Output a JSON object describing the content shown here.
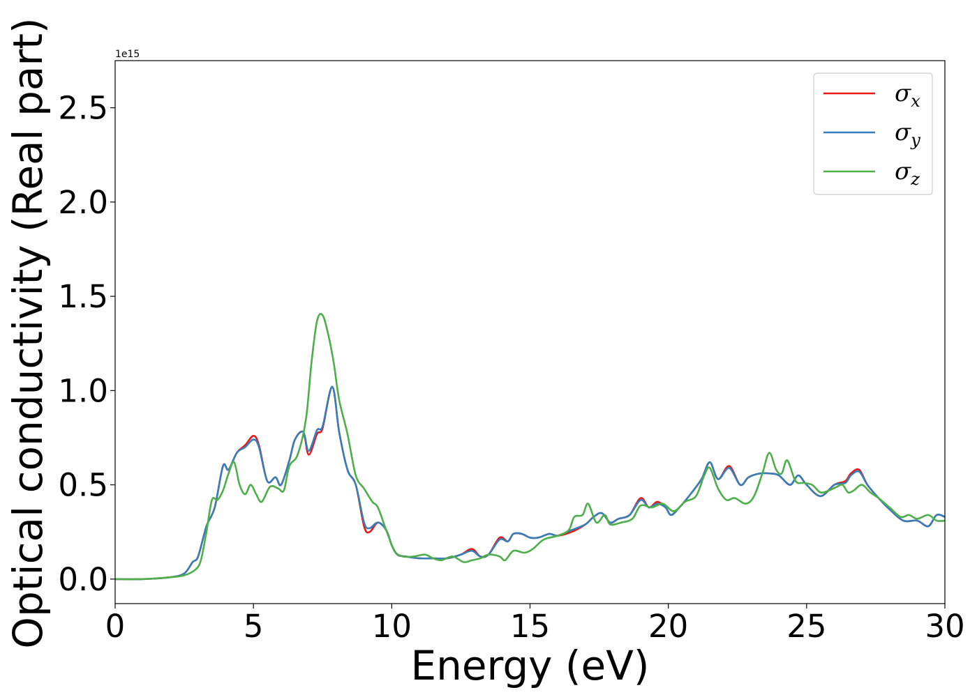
{
  "chart_data": {
    "type": "line",
    "title": "",
    "xlabel": "Energy (eV)",
    "ylabel": "Optical conductivity (Real part)",
    "y_multiplier_label": "1e15",
    "xlim": [
      0,
      30
    ],
    "ylim": [
      -0.13,
      2.75
    ],
    "x_ticks": [
      0,
      5,
      10,
      15,
      20,
      25,
      30
    ],
    "x_tick_labels": [
      "0",
      "5",
      "10",
      "15",
      "20",
      "25",
      "30"
    ],
    "y_ticks": [
      0.0,
      0.5,
      1.0,
      1.5,
      2.0,
      2.5
    ],
    "y_tick_labels": [
      "0.0",
      "0.5",
      "1.0",
      "1.5",
      "2.0",
      "2.5"
    ],
    "grid": false,
    "legend_position": "top-right",
    "series": [
      {
        "name": "σx",
        "symbol": "σ",
        "subscript": "x",
        "color": "#e41a1c",
        "points": [
          [
            0,
            0
          ],
          [
            1,
            0.0
          ],
          [
            2,
            0.01
          ],
          [
            2.5,
            0.03
          ],
          [
            2.8,
            0.09
          ],
          [
            3.0,
            0.12
          ],
          [
            3.3,
            0.28
          ],
          [
            3.6,
            0.38
          ],
          [
            3.9,
            0.6
          ],
          [
            4.1,
            0.58
          ],
          [
            4.4,
            0.67
          ],
          [
            4.7,
            0.71
          ],
          [
            5.0,
            0.76
          ],
          [
            5.2,
            0.71
          ],
          [
            5.5,
            0.52
          ],
          [
            5.8,
            0.54
          ],
          [
            6.0,
            0.5
          ],
          [
            6.3,
            0.63
          ],
          [
            6.5,
            0.74
          ],
          [
            6.8,
            0.78
          ],
          [
            7.0,
            0.66
          ],
          [
            7.3,
            0.77
          ],
          [
            7.5,
            0.8
          ],
          [
            7.85,
            1.02
          ],
          [
            8.1,
            0.78
          ],
          [
            8.4,
            0.58
          ],
          [
            8.7,
            0.5
          ],
          [
            9.0,
            0.28
          ],
          [
            9.2,
            0.25
          ],
          [
            9.5,
            0.3
          ],
          [
            9.8,
            0.26
          ],
          [
            10.0,
            0.18
          ],
          [
            10.2,
            0.13
          ],
          [
            10.5,
            0.12
          ],
          [
            11.0,
            0.11
          ],
          [
            11.5,
            0.11
          ],
          [
            12.0,
            0.11
          ],
          [
            12.5,
            0.13
          ],
          [
            12.9,
            0.16
          ],
          [
            13.2,
            0.12
          ],
          [
            13.5,
            0.13
          ],
          [
            13.9,
            0.22
          ],
          [
            14.2,
            0.2
          ],
          [
            14.4,
            0.24
          ],
          [
            14.7,
            0.24
          ],
          [
            15.0,
            0.22
          ],
          [
            15.3,
            0.22
          ],
          [
            15.7,
            0.24
          ],
          [
            16.0,
            0.23
          ],
          [
            16.5,
            0.25
          ],
          [
            17.0,
            0.29
          ],
          [
            17.3,
            0.33
          ],
          [
            17.6,
            0.35
          ],
          [
            17.9,
            0.3
          ],
          [
            18.2,
            0.32
          ],
          [
            18.6,
            0.34
          ],
          [
            19.0,
            0.43
          ],
          [
            19.3,
            0.38
          ],
          [
            19.6,
            0.41
          ],
          [
            19.9,
            0.38
          ],
          [
            20.1,
            0.34
          ],
          [
            20.4,
            0.38
          ],
          [
            20.8,
            0.45
          ],
          [
            21.2,
            0.53
          ],
          [
            21.5,
            0.62
          ],
          [
            21.8,
            0.53
          ],
          [
            22.2,
            0.6
          ],
          [
            22.6,
            0.5
          ],
          [
            22.9,
            0.54
          ],
          [
            23.3,
            0.56
          ],
          [
            23.7,
            0.56
          ],
          [
            24.0,
            0.55
          ],
          [
            24.4,
            0.5
          ],
          [
            24.7,
            0.55
          ],
          [
            25.0,
            0.5
          ],
          [
            25.5,
            0.44
          ],
          [
            26.0,
            0.5
          ],
          [
            26.4,
            0.52
          ],
          [
            26.6,
            0.56
          ],
          [
            26.9,
            0.58
          ],
          [
            27.2,
            0.5
          ],
          [
            27.6,
            0.43
          ],
          [
            28.0,
            0.37
          ],
          [
            28.5,
            0.31
          ],
          [
            29.0,
            0.31
          ],
          [
            29.4,
            0.28
          ],
          [
            29.7,
            0.34
          ],
          [
            30.0,
            0.33
          ]
        ]
      },
      {
        "name": "σy",
        "symbol": "σ",
        "subscript": "y",
        "color": "#377eb8",
        "points": [
          [
            0,
            0
          ],
          [
            1,
            0.0
          ],
          [
            2,
            0.01
          ],
          [
            2.5,
            0.03
          ],
          [
            2.8,
            0.09
          ],
          [
            3.0,
            0.12
          ],
          [
            3.3,
            0.28
          ],
          [
            3.6,
            0.38
          ],
          [
            3.9,
            0.6
          ],
          [
            4.1,
            0.58
          ],
          [
            4.4,
            0.67
          ],
          [
            4.7,
            0.7
          ],
          [
            5.0,
            0.74
          ],
          [
            5.2,
            0.7
          ],
          [
            5.5,
            0.52
          ],
          [
            5.8,
            0.54
          ],
          [
            6.0,
            0.5
          ],
          [
            6.3,
            0.63
          ],
          [
            6.5,
            0.74
          ],
          [
            6.8,
            0.78
          ],
          [
            7.0,
            0.68
          ],
          [
            7.3,
            0.79
          ],
          [
            7.5,
            0.81
          ],
          [
            7.85,
            1.02
          ],
          [
            8.1,
            0.78
          ],
          [
            8.4,
            0.58
          ],
          [
            8.7,
            0.5
          ],
          [
            9.0,
            0.3
          ],
          [
            9.2,
            0.27
          ],
          [
            9.5,
            0.3
          ],
          [
            9.8,
            0.26
          ],
          [
            10.0,
            0.18
          ],
          [
            10.2,
            0.13
          ],
          [
            10.5,
            0.12
          ],
          [
            11.0,
            0.11
          ],
          [
            11.5,
            0.11
          ],
          [
            12.0,
            0.11
          ],
          [
            12.5,
            0.13
          ],
          [
            12.9,
            0.15
          ],
          [
            13.2,
            0.12
          ],
          [
            13.5,
            0.13
          ],
          [
            13.9,
            0.21
          ],
          [
            14.2,
            0.2
          ],
          [
            14.4,
            0.24
          ],
          [
            14.7,
            0.24
          ],
          [
            15.0,
            0.22
          ],
          [
            15.3,
            0.22
          ],
          [
            15.7,
            0.24
          ],
          [
            16.0,
            0.23
          ],
          [
            16.5,
            0.26
          ],
          [
            17.0,
            0.29
          ],
          [
            17.3,
            0.33
          ],
          [
            17.6,
            0.35
          ],
          [
            17.9,
            0.3
          ],
          [
            18.2,
            0.32
          ],
          [
            18.6,
            0.34
          ],
          [
            19.0,
            0.42
          ],
          [
            19.3,
            0.38
          ],
          [
            19.6,
            0.4
          ],
          [
            19.9,
            0.38
          ],
          [
            20.1,
            0.34
          ],
          [
            20.4,
            0.38
          ],
          [
            20.8,
            0.45
          ],
          [
            21.2,
            0.53
          ],
          [
            21.5,
            0.62
          ],
          [
            21.8,
            0.53
          ],
          [
            22.2,
            0.59
          ],
          [
            22.6,
            0.5
          ],
          [
            22.9,
            0.54
          ],
          [
            23.3,
            0.56
          ],
          [
            23.7,
            0.56
          ],
          [
            24.0,
            0.55
          ],
          [
            24.4,
            0.5
          ],
          [
            24.7,
            0.55
          ],
          [
            25.0,
            0.5
          ],
          [
            25.5,
            0.44
          ],
          [
            26.0,
            0.5
          ],
          [
            26.4,
            0.51
          ],
          [
            26.6,
            0.55
          ],
          [
            26.9,
            0.57
          ],
          [
            27.2,
            0.5
          ],
          [
            27.6,
            0.43
          ],
          [
            28.0,
            0.37
          ],
          [
            28.5,
            0.31
          ],
          [
            29.0,
            0.31
          ],
          [
            29.4,
            0.28
          ],
          [
            29.7,
            0.34
          ],
          [
            30.0,
            0.33
          ]
        ]
      },
      {
        "name": "σz",
        "symbol": "σ",
        "subscript": "z",
        "color": "#4daf4a",
        "points": [
          [
            0,
            0
          ],
          [
            1,
            0.0
          ],
          [
            2,
            0.01
          ],
          [
            2.5,
            0.02
          ],
          [
            2.9,
            0.05
          ],
          [
            3.1,
            0.1
          ],
          [
            3.3,
            0.25
          ],
          [
            3.5,
            0.42
          ],
          [
            3.7,
            0.42
          ],
          [
            3.9,
            0.47
          ],
          [
            4.1,
            0.56
          ],
          [
            4.3,
            0.62
          ],
          [
            4.5,
            0.5
          ],
          [
            4.7,
            0.45
          ],
          [
            4.9,
            0.5
          ],
          [
            5.1,
            0.45
          ],
          [
            5.3,
            0.41
          ],
          [
            5.6,
            0.49
          ],
          [
            5.9,
            0.48
          ],
          [
            6.1,
            0.47
          ],
          [
            6.3,
            0.6
          ],
          [
            6.6,
            0.66
          ],
          [
            6.9,
            0.85
          ],
          [
            7.1,
            1.15
          ],
          [
            7.3,
            1.37
          ],
          [
            7.5,
            1.4
          ],
          [
            7.7,
            1.3
          ],
          [
            7.9,
            1.15
          ],
          [
            8.1,
            0.95
          ],
          [
            8.4,
            0.77
          ],
          [
            8.7,
            0.55
          ],
          [
            9.0,
            0.48
          ],
          [
            9.3,
            0.41
          ],
          [
            9.5,
            0.38
          ],
          [
            9.8,
            0.26
          ],
          [
            10.1,
            0.15
          ],
          [
            10.4,
            0.12
          ],
          [
            10.8,
            0.12
          ],
          [
            11.2,
            0.13
          ],
          [
            11.5,
            0.11
          ],
          [
            11.8,
            0.1
          ],
          [
            12.2,
            0.12
          ],
          [
            12.6,
            0.09
          ],
          [
            12.9,
            0.1
          ],
          [
            13.2,
            0.11
          ],
          [
            13.5,
            0.13
          ],
          [
            13.9,
            0.12
          ],
          [
            14.1,
            0.1
          ],
          [
            14.4,
            0.15
          ],
          [
            14.8,
            0.14
          ],
          [
            15.1,
            0.16
          ],
          [
            15.5,
            0.21
          ],
          [
            16.0,
            0.23
          ],
          [
            16.4,
            0.26
          ],
          [
            16.6,
            0.33
          ],
          [
            16.9,
            0.34
          ],
          [
            17.1,
            0.4
          ],
          [
            17.4,
            0.3
          ],
          [
            17.7,
            0.34
          ],
          [
            17.9,
            0.29
          ],
          [
            18.3,
            0.3
          ],
          [
            18.7,
            0.32
          ],
          [
            19.0,
            0.39
          ],
          [
            19.4,
            0.38
          ],
          [
            19.8,
            0.4
          ],
          [
            20.2,
            0.36
          ],
          [
            20.6,
            0.41
          ],
          [
            21.0,
            0.44
          ],
          [
            21.3,
            0.55
          ],
          [
            21.5,
            0.59
          ],
          [
            21.8,
            0.48
          ],
          [
            22.1,
            0.42
          ],
          [
            22.4,
            0.43
          ],
          [
            22.8,
            0.4
          ],
          [
            23.1,
            0.44
          ],
          [
            23.4,
            0.56
          ],
          [
            23.65,
            0.67
          ],
          [
            23.9,
            0.58
          ],
          [
            24.1,
            0.56
          ],
          [
            24.3,
            0.63
          ],
          [
            24.6,
            0.52
          ],
          [
            24.9,
            0.51
          ],
          [
            25.2,
            0.5
          ],
          [
            25.5,
            0.46
          ],
          [
            25.8,
            0.47
          ],
          [
            26.1,
            0.49
          ],
          [
            26.3,
            0.5
          ],
          [
            26.5,
            0.46
          ],
          [
            26.7,
            0.47
          ],
          [
            27.0,
            0.5
          ],
          [
            27.3,
            0.46
          ],
          [
            27.6,
            0.43
          ],
          [
            28.0,
            0.38
          ],
          [
            28.4,
            0.33
          ],
          [
            28.7,
            0.34
          ],
          [
            29.0,
            0.32
          ],
          [
            29.4,
            0.34
          ],
          [
            29.7,
            0.31
          ],
          [
            30.0,
            0.31
          ]
        ]
      }
    ]
  }
}
